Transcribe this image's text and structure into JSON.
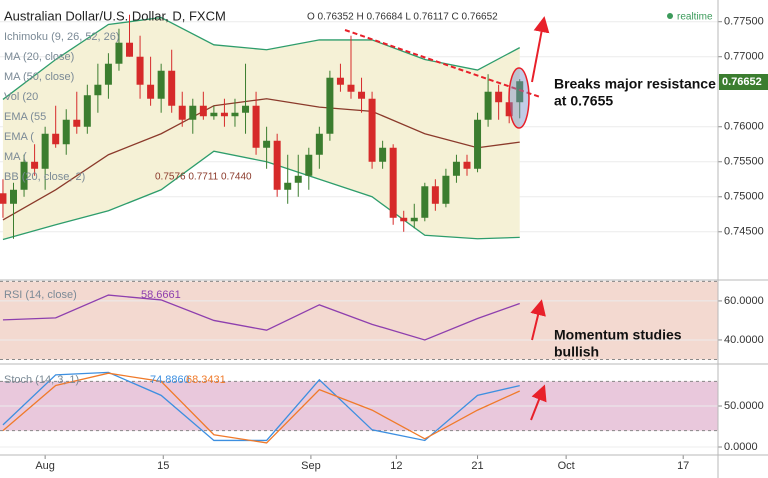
{
  "chart_data": [
    {
      "type": "candlestick",
      "title": "Australian Dollar/U.S. Dollar, D, FXCM",
      "ohlc_label": "O 0.76352 H 0.76684 L 0.76117 C 0.76652",
      "status": "realtime",
      "price_tag": "0.76652",
      "indicator_labels": [
        "Ichimoku (9, 26, 52, 26)",
        "MA (20, close)",
        "MA (50, close)",
        "Vol (20",
        "EMA (55",
        "EMA (",
        "MA (",
        "BB (20, close, 2)"
      ],
      "bb_values_label": "0.7576  0.7711  0.7440",
      "annotations": [
        "Breaks major resistance",
        "at 0.7655"
      ],
      "up_color": "#3b7d2f",
      "down_color": "#d62a2a",
      "x": [
        0,
        1,
        2,
        3,
        4,
        5,
        6,
        7,
        8,
        9,
        10,
        11,
        12,
        13,
        14,
        15,
        16,
        17,
        18,
        19,
        20,
        21,
        22,
        23,
        24,
        25,
        26,
        27,
        28,
        29,
        30,
        31,
        32,
        33,
        34,
        35,
        36,
        37,
        38,
        39,
        40,
        41,
        42,
        43,
        44,
        45,
        46,
        47,
        48,
        49
      ],
      "open": [
        0.7505,
        0.749,
        0.751,
        0.755,
        0.754,
        0.759,
        0.7575,
        0.761,
        0.76,
        0.7645,
        0.766,
        0.769,
        0.772,
        0.77,
        0.766,
        0.764,
        0.768,
        0.763,
        0.761,
        0.763,
        0.7615,
        0.762,
        0.7615,
        0.762,
        0.763,
        0.757,
        0.758,
        0.751,
        0.752,
        0.753,
        0.756,
        0.759,
        0.767,
        0.766,
        0.765,
        0.764,
        0.755,
        0.757,
        0.747,
        0.7465,
        0.747,
        0.7515,
        0.749,
        0.753,
        0.755,
        0.754,
        0.761,
        0.765,
        0.7635,
        0.7635
      ],
      "high": [
        0.7525,
        0.752,
        0.756,
        0.7575,
        0.76,
        0.763,
        0.7625,
        0.765,
        0.766,
        0.769,
        0.7705,
        0.774,
        0.776,
        0.773,
        0.77,
        0.769,
        0.771,
        0.765,
        0.764,
        0.765,
        0.763,
        0.764,
        0.764,
        0.769,
        0.765,
        0.76,
        0.759,
        0.756,
        0.756,
        0.757,
        0.76,
        0.768,
        0.769,
        0.773,
        0.767,
        0.765,
        0.758,
        0.7575,
        0.748,
        0.749,
        0.752,
        0.7525,
        0.754,
        0.756,
        0.756,
        0.762,
        0.7675,
        0.766,
        0.7655,
        0.7668
      ],
      "low": [
        0.747,
        0.744,
        0.75,
        0.753,
        0.751,
        0.757,
        0.756,
        0.759,
        0.759,
        0.762,
        0.764,
        0.768,
        0.77,
        0.764,
        0.763,
        0.762,
        0.762,
        0.76,
        0.759,
        0.761,
        0.761,
        0.76,
        0.76,
        0.759,
        0.756,
        0.754,
        0.75,
        0.749,
        0.75,
        0.751,
        0.754,
        0.758,
        0.765,
        0.764,
        0.762,
        0.754,
        0.754,
        0.746,
        0.745,
        0.7455,
        0.7465,
        0.748,
        0.7485,
        0.752,
        0.753,
        0.7535,
        0.76,
        0.761,
        0.7605,
        0.7612
      ],
      "close": [
        0.749,
        0.751,
        0.755,
        0.754,
        0.759,
        0.7575,
        0.761,
        0.76,
        0.7645,
        0.766,
        0.769,
        0.772,
        0.77,
        0.766,
        0.764,
        0.768,
        0.763,
        0.761,
        0.763,
        0.7615,
        0.762,
        0.7615,
        0.762,
        0.763,
        0.757,
        0.758,
        0.751,
        0.752,
        0.753,
        0.756,
        0.759,
        0.767,
        0.766,
        0.765,
        0.764,
        0.755,
        0.757,
        0.747,
        0.7465,
        0.747,
        0.7515,
        0.749,
        0.753,
        0.755,
        0.754,
        0.761,
        0.765,
        0.7635,
        0.7615,
        0.7665
      ],
      "series": [
        {
          "x": [
            0,
            5,
            10,
            15,
            20,
            25,
            30,
            35,
            40,
            45,
            49
          ],
          "color": "#2e9d6c",
          "values": [
            0.7639,
            0.7696,
            0.7746,
            0.7756,
            0.7717,
            0.771,
            0.7724,
            0.7724,
            0.7696,
            0.7681,
            0.7713
          ]
        },
        {
          "x": [
            0,
            5,
            10,
            15,
            20,
            25,
            30,
            35,
            40,
            45,
            49
          ],
          "color": "#8b3a2b",
          "values": [
            0.7467,
            0.751,
            0.756,
            0.759,
            0.763,
            0.764,
            0.7628,
            0.7622,
            0.759,
            0.757,
            0.7578
          ]
        },
        {
          "x": [
            0,
            5,
            10,
            15,
            20,
            25,
            30,
            35,
            40,
            45,
            49
          ],
          "color": "#2e9d6c",
          "values": [
            0.7439,
            0.746,
            0.748,
            0.751,
            0.7565,
            0.755,
            0.7525,
            0.75,
            0.7445,
            0.744,
            0.7442
          ]
        }
      ],
      "xlim": [
        -0.28,
        67.8
      ],
      "xticks": [
        {
          "value": 4,
          "label": "Aug"
        },
        {
          "value": 15.2,
          "label": "15"
        },
        {
          "value": 29.2,
          "label": "Sep"
        },
        {
          "value": 37.3,
          "label": "12"
        },
        {
          "value": 45,
          "label": "21"
        },
        {
          "value": 53.4,
          "label": "Oct"
        },
        {
          "value": 64.5,
          "label": "17"
        }
      ],
      "ylim": [
        0.7384,
        0.7781
      ],
      "yticks": [
        {
          "value": 0.775,
          "label": "0.77500"
        },
        {
          "value": 0.77,
          "label": "0.77000"
        },
        {
          "value": 0.76,
          "label": "0.76000"
        },
        {
          "value": 0.755,
          "label": "0.75500"
        },
        {
          "value": 0.75,
          "label": "0.75000"
        },
        {
          "value": 0.745,
          "label": "0.74500"
        }
      ],
      "grid": true
    },
    {
      "type": "line",
      "title": "RSI (14, close)",
      "value_label": "58.6661",
      "annotations": [
        "Momentum studies",
        "bullish"
      ],
      "band": [
        30,
        70
      ],
      "band_color": "#f3d9d0",
      "series": [
        {
          "x": [
            0,
            5,
            10,
            15,
            20,
            25,
            30,
            35,
            40,
            45,
            49
          ],
          "color": "#8e3fae",
          "values": [
            50.3,
            51.3,
            63,
            60.5,
            50,
            45,
            58,
            48,
            40,
            51,
            58.6661
          ]
        }
      ],
      "ylim": [
        28.7,
        69.7
      ],
      "yticks": [
        {
          "value": 60,
          "label": "60.0000"
        },
        {
          "value": 40,
          "label": "40.0000"
        }
      ],
      "grid": true
    },
    {
      "type": "line",
      "title": "Stoch (14, 3, 1)",
      "value_labels": [
        "74.8860",
        "68.3431"
      ],
      "band": [
        20,
        80
      ],
      "band_color": "#e9c8dc",
      "series": [
        {
          "x": [
            0,
            5,
            10,
            15,
            20,
            25,
            30,
            35,
            40,
            45,
            49
          ],
          "color": "#3d8fe0",
          "values": [
            27,
            88,
            91,
            63,
            8,
            8,
            82,
            21,
            8,
            63,
            74.886
          ]
        },
        {
          "x": [
            0,
            5,
            10,
            15,
            20,
            25,
            30,
            35,
            40,
            45,
            49
          ],
          "color": "#f07a2a",
          "values": [
            20,
            75,
            90,
            80,
            15,
            5,
            70,
            45,
            10,
            45,
            68.3431
          ]
        }
      ],
      "ylim": [
        -7.3,
        98.8
      ],
      "yticks": [
        {
          "value": 50,
          "label": "50.0000"
        },
        {
          "value": 0,
          "label": "0.0000"
        }
      ],
      "grid": true
    }
  ]
}
